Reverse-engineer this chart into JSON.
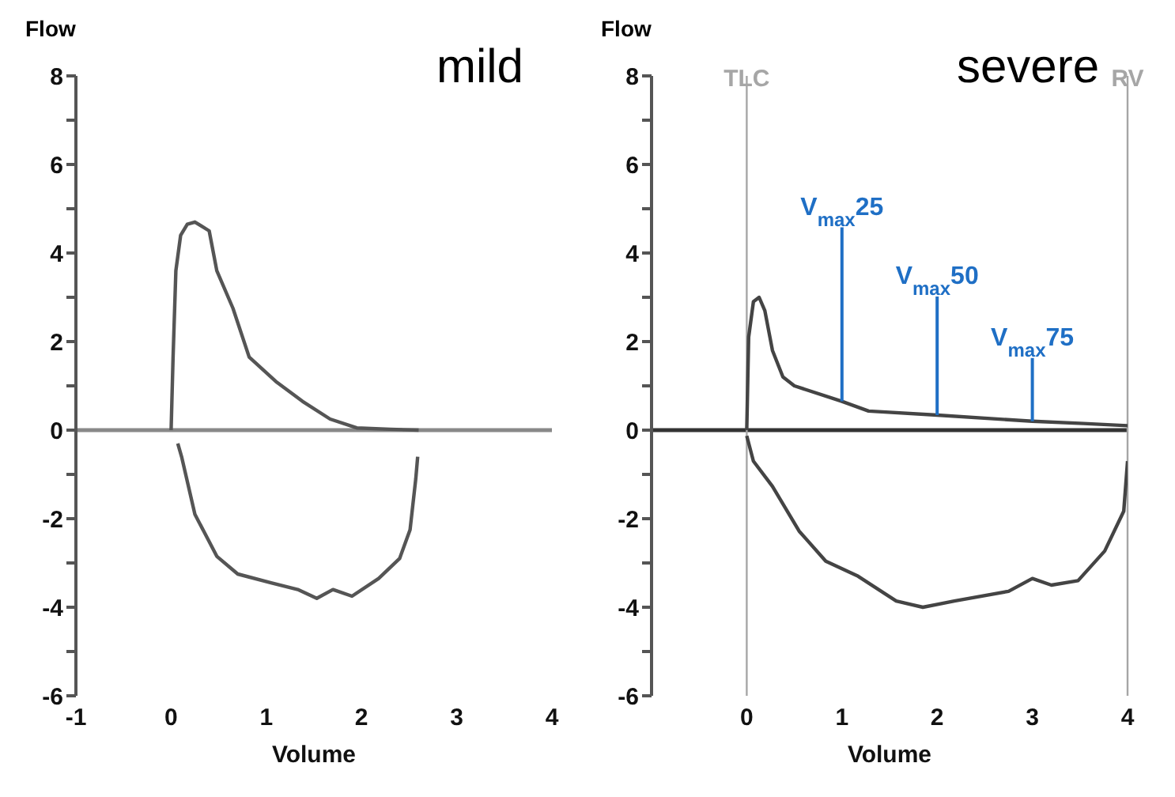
{
  "chart_data": [
    {
      "type": "line",
      "title": "mild",
      "xlabel": "Volume",
      "ylabel": "Flow",
      "xlim": [
        -1,
        4
      ],
      "ylim": [
        -6,
        8
      ],
      "xticks": [
        -1,
        0,
        1,
        2,
        3,
        4
      ],
      "yticks": [
        -6,
        {
          "value": -5,
          "label": null
        },
        -4,
        {
          "value": -3,
          "label": null
        },
        -2,
        {
          "value": -1,
          "label": null
        },
        0,
        {
          "value": 1,
          "label": null
        },
        2,
        {
          "value": 3,
          "label": null
        },
        4,
        {
          "value": 5,
          "label": null
        },
        6,
        {
          "value": 7,
          "label": null
        },
        8
      ],
      "grid": false,
      "marker": "none",
      "line_style": "solid",
      "ref_lines": [
        {
          "axis": "y",
          "value": 0,
          "color": "#888888"
        }
      ],
      "series": [
        {
          "color": "#555555",
          "x": [
            0,
            0.02,
            0.05,
            0.1,
            0.17,
            0.25,
            0.4,
            0.48,
            0.65,
            0.82,
            1.1,
            1.38,
            1.67,
            1.95,
            2.3,
            2.6
          ],
          "values": [
            0,
            1.6,
            3.6,
            4.4,
            4.65,
            4.7,
            4.5,
            3.6,
            2.75,
            1.65,
            1.1,
            0.65,
            0.25,
            0.05,
            0.02,
            0
          ]
        },
        {
          "color": "#555555",
          "x": [
            0.07,
            0.11,
            0.25,
            0.48,
            0.7,
            1.05,
            1.33,
            1.53,
            1.7,
            1.9,
            2.18,
            2.4,
            2.51,
            2.57,
            2.59
          ],
          "values": [
            -0.3,
            -0.6,
            -1.9,
            -2.85,
            -3.25,
            -3.45,
            -3.6,
            -3.8,
            -3.6,
            -3.75,
            -3.35,
            -2.9,
            -2.25,
            -1.1,
            -0.6
          ]
        }
      ]
    },
    {
      "type": "line",
      "title": "severe",
      "xlabel": "Volume",
      "ylabel": "Flow",
      "xlim": [
        -1,
        4
      ],
      "ylim": [
        -6,
        8
      ],
      "xticks": [
        0,
        1,
        2,
        3,
        4
      ],
      "yticks": [
        -6,
        {
          "value": -5,
          "label": null
        },
        -4,
        {
          "value": -3,
          "label": null
        },
        -2,
        {
          "value": -1,
          "label": null
        },
        0,
        {
          "value": 1,
          "label": null
        },
        2,
        {
          "value": 3,
          "label": null
        },
        4,
        {
          "value": 5,
          "label": null
        },
        6,
        {
          "value": 7,
          "label": null
        },
        8
      ],
      "grid": false,
      "marker": "none",
      "line_style": "solid",
      "ref_lines": [
        {
          "axis": "y",
          "value": 0,
          "color": "#333333"
        },
        {
          "axis": "x",
          "value": 0,
          "label": "TLC",
          "color": "#a6a6a6"
        },
        {
          "axis": "x",
          "value": 4,
          "label": "RV",
          "color": "#a6a6a6"
        }
      ],
      "annotations": [
        {
          "text": "V$_{max}$25",
          "x": 1,
          "y": 0.65
        },
        {
          "text": "V$_{max}$50",
          "x": 2,
          "y": 0.34
        },
        {
          "text": "V$_{max}$75",
          "x": 3,
          "y": 0.2
        }
      ],
      "series": [
        {
          "color": "#444444",
          "x": [
            0,
            0.02,
            0.07,
            0.13,
            0.19,
            0.27,
            0.38,
            0.5,
            1,
            1.28,
            2,
            3,
            3.54,
            4
          ],
          "values": [
            0,
            2.1,
            2.9,
            3,
            2.7,
            1.8,
            1.2,
            1,
            0.65,
            0.43,
            0.34,
            0.2,
            0.15,
            0.1
          ]
        },
        {
          "color": "#444444",
          "x": [
            0,
            0.07,
            0.27,
            0.55,
            0.83,
            1.17,
            1.57,
            1.85,
            2.18,
            2.75,
            3,
            3.2,
            3.48,
            3.76,
            3.96,
            4
          ],
          "values": [
            -0.13,
            -0.7,
            -1.27,
            -2.28,
            -2.96,
            -3.3,
            -3.86,
            -4,
            -3.86,
            -3.64,
            -3.35,
            -3.5,
            -3.4,
            -2.73,
            -1.83,
            -0.7
          ]
        }
      ]
    }
  ]
}
